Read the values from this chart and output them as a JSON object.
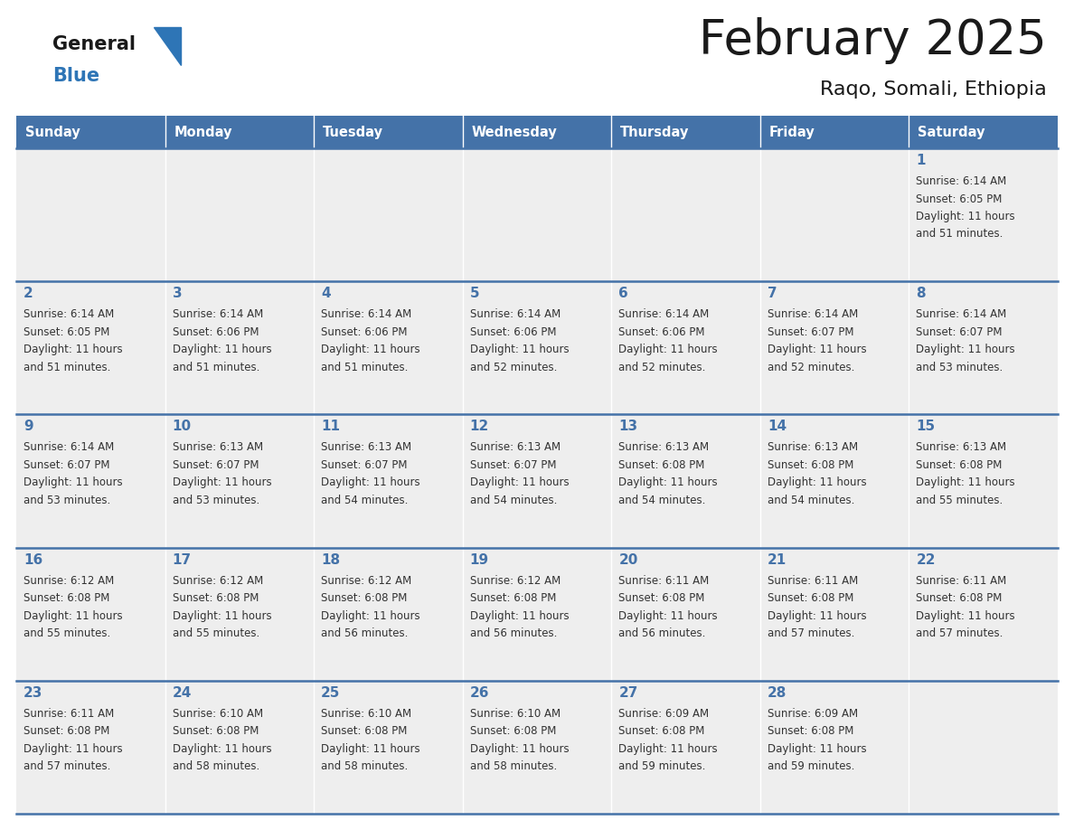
{
  "title": "February 2025",
  "subtitle": "Raqo, Somali, Ethiopia",
  "days_of_week": [
    "Sunday",
    "Monday",
    "Tuesday",
    "Wednesday",
    "Thursday",
    "Friday",
    "Saturday"
  ],
  "header_bg": "#4472a8",
  "header_text": "#ffffff",
  "cell_bg_light": "#eeeeee",
  "line_color": "#4472a8",
  "text_color": "#333333",
  "day_num_color": "#4472a8",
  "logo_general_color": "#1a1a1a",
  "logo_blue_color": "#2e75b6",
  "calendar_data": [
    [
      null,
      null,
      null,
      null,
      null,
      null,
      {
        "day": 1,
        "sunrise": "6:14 AM",
        "sunset": "6:05 PM",
        "daylight_hrs": 11,
        "daylight_min": 51
      }
    ],
    [
      {
        "day": 2,
        "sunrise": "6:14 AM",
        "sunset": "6:05 PM",
        "daylight_hrs": 11,
        "daylight_min": 51
      },
      {
        "day": 3,
        "sunrise": "6:14 AM",
        "sunset": "6:06 PM",
        "daylight_hrs": 11,
        "daylight_min": 51
      },
      {
        "day": 4,
        "sunrise": "6:14 AM",
        "sunset": "6:06 PM",
        "daylight_hrs": 11,
        "daylight_min": 51
      },
      {
        "day": 5,
        "sunrise": "6:14 AM",
        "sunset": "6:06 PM",
        "daylight_hrs": 11,
        "daylight_min": 52
      },
      {
        "day": 6,
        "sunrise": "6:14 AM",
        "sunset": "6:06 PM",
        "daylight_hrs": 11,
        "daylight_min": 52
      },
      {
        "day": 7,
        "sunrise": "6:14 AM",
        "sunset": "6:07 PM",
        "daylight_hrs": 11,
        "daylight_min": 52
      },
      {
        "day": 8,
        "sunrise": "6:14 AM",
        "sunset": "6:07 PM",
        "daylight_hrs": 11,
        "daylight_min": 53
      }
    ],
    [
      {
        "day": 9,
        "sunrise": "6:14 AM",
        "sunset": "6:07 PM",
        "daylight_hrs": 11,
        "daylight_min": 53
      },
      {
        "day": 10,
        "sunrise": "6:13 AM",
        "sunset": "6:07 PM",
        "daylight_hrs": 11,
        "daylight_min": 53
      },
      {
        "day": 11,
        "sunrise": "6:13 AM",
        "sunset": "6:07 PM",
        "daylight_hrs": 11,
        "daylight_min": 54
      },
      {
        "day": 12,
        "sunrise": "6:13 AM",
        "sunset": "6:07 PM",
        "daylight_hrs": 11,
        "daylight_min": 54
      },
      {
        "day": 13,
        "sunrise": "6:13 AM",
        "sunset": "6:08 PM",
        "daylight_hrs": 11,
        "daylight_min": 54
      },
      {
        "day": 14,
        "sunrise": "6:13 AM",
        "sunset": "6:08 PM",
        "daylight_hrs": 11,
        "daylight_min": 54
      },
      {
        "day": 15,
        "sunrise": "6:13 AM",
        "sunset": "6:08 PM",
        "daylight_hrs": 11,
        "daylight_min": 55
      }
    ],
    [
      {
        "day": 16,
        "sunrise": "6:12 AM",
        "sunset": "6:08 PM",
        "daylight_hrs": 11,
        "daylight_min": 55
      },
      {
        "day": 17,
        "sunrise": "6:12 AM",
        "sunset": "6:08 PM",
        "daylight_hrs": 11,
        "daylight_min": 55
      },
      {
        "day": 18,
        "sunrise": "6:12 AM",
        "sunset": "6:08 PM",
        "daylight_hrs": 11,
        "daylight_min": 56
      },
      {
        "day": 19,
        "sunrise": "6:12 AM",
        "sunset": "6:08 PM",
        "daylight_hrs": 11,
        "daylight_min": 56
      },
      {
        "day": 20,
        "sunrise": "6:11 AM",
        "sunset": "6:08 PM",
        "daylight_hrs": 11,
        "daylight_min": 56
      },
      {
        "day": 21,
        "sunrise": "6:11 AM",
        "sunset": "6:08 PM",
        "daylight_hrs": 11,
        "daylight_min": 57
      },
      {
        "day": 22,
        "sunrise": "6:11 AM",
        "sunset": "6:08 PM",
        "daylight_hrs": 11,
        "daylight_min": 57
      }
    ],
    [
      {
        "day": 23,
        "sunrise": "6:11 AM",
        "sunset": "6:08 PM",
        "daylight_hrs": 11,
        "daylight_min": 57
      },
      {
        "day": 24,
        "sunrise": "6:10 AM",
        "sunset": "6:08 PM",
        "daylight_hrs": 11,
        "daylight_min": 58
      },
      {
        "day": 25,
        "sunrise": "6:10 AM",
        "sunset": "6:08 PM",
        "daylight_hrs": 11,
        "daylight_min": 58
      },
      {
        "day": 26,
        "sunrise": "6:10 AM",
        "sunset": "6:08 PM",
        "daylight_hrs": 11,
        "daylight_min": 58
      },
      {
        "day": 27,
        "sunrise": "6:09 AM",
        "sunset": "6:08 PM",
        "daylight_hrs": 11,
        "daylight_min": 59
      },
      {
        "day": 28,
        "sunrise": "6:09 AM",
        "sunset": "6:08 PM",
        "daylight_hrs": 11,
        "daylight_min": 59
      },
      null
    ]
  ]
}
